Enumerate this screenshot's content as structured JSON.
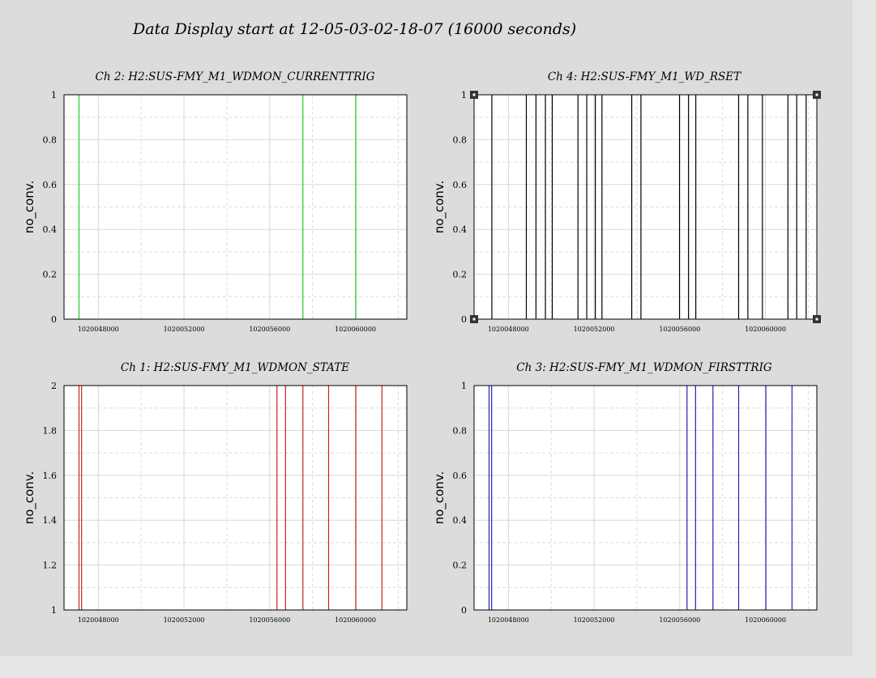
{
  "page": {
    "title": "Data Display start at 12-05-03-02-18-07 (16000 seconds)"
  },
  "chart_data": [
    {
      "type": "line",
      "title": "Ch 2: H2:SUS-FMY_M1_WDMON_CURRENTTRIG",
      "ylabel": "no_conv.",
      "xlim": [
        1020046400,
        1020062400
      ],
      "ylim": [
        0,
        1
      ],
      "yticks": [
        0,
        0.2,
        0.4,
        0.6,
        0.8,
        1
      ],
      "yticklabels": [
        "0",
        "0.2",
        "0.4",
        "0.6",
        "0.8",
        "1"
      ],
      "xticks": [
        1020048000,
        1020052000,
        1020056000,
        1020060000
      ],
      "xticklabels": [
        "1020048000",
        "1020052000",
        "1020056000",
        "1020060000"
      ],
      "grid": true,
      "color": "#22cc22",
      "series": [
        {
          "x": [
            1020047100,
            1020057550,
            1020060020
          ],
          "y": [
            1,
            1,
            1
          ]
        }
      ]
    },
    {
      "type": "line",
      "title": "Ch 4: H2:SUS-FMY_M1_WD_RSET",
      "ylabel": "no_conv.",
      "xlim": [
        1020046400,
        1020062400
      ],
      "ylim": [
        0,
        1
      ],
      "yticks": [
        0,
        0.2,
        0.4,
        0.6,
        0.8,
        1
      ],
      "yticklabels": [
        "0",
        "0.2",
        "0.4",
        "0.6",
        "0.8",
        "1"
      ],
      "xticks": [
        1020048000,
        1020052000,
        1020056000,
        1020060000
      ],
      "xticklabels": [
        "1020048000",
        "1020052000",
        "1020056000",
        "1020060000"
      ],
      "grid": true,
      "color": "#000000",
      "series": [
        {
          "x": [
            1020047230,
            1020048840,
            1020049290,
            1020049730,
            1020050050,
            1020051250,
            1020051660,
            1020052060,
            1020052370,
            1020053760,
            1020054190,
            1020055990,
            1020056410,
            1020056750,
            1020058750,
            1020059180,
            1020059860,
            1020061050,
            1020061460,
            1020061900
          ],
          "y": [
            1,
            1,
            1,
            1,
            1,
            1,
            1,
            1,
            1,
            1,
            1,
            1,
            1,
            1,
            1,
            1,
            1,
            1,
            1,
            1
          ]
        }
      ]
    },
    {
      "type": "line",
      "title": "Ch 1: H2:SUS-FMY_M1_WDMON_STATE",
      "ylabel": "no_conv.",
      "xlim": [
        1020046400,
        1020062400
      ],
      "ylim": [
        1,
        2
      ],
      "yticks": [
        1,
        1.2,
        1.4,
        1.6,
        1.8,
        2
      ],
      "yticklabels": [
        "1",
        "1.2",
        "1.4",
        "1.6",
        "1.8",
        "2"
      ],
      "xticks": [
        1020048000,
        1020052000,
        1020056000,
        1020060000
      ],
      "xticklabels": [
        "1020048000",
        "1020052000",
        "1020056000",
        "1020060000"
      ],
      "grid": true,
      "color": "#cc2222",
      "series": [
        {
          "x": [
            1020047100,
            1020047220,
            1020056340,
            1020056740,
            1020057550,
            1020058750,
            1020060020,
            1020061240
          ],
          "y": [
            2,
            2,
            2,
            2,
            2,
            2,
            2,
            2
          ]
        }
      ]
    },
    {
      "type": "line",
      "title": "Ch 3: H2:SUS-FMY_M1_WDMON_FIRSTTRIG",
      "ylabel": "no_conv.",
      "xlim": [
        1020046400,
        1020062400
      ],
      "ylim": [
        0,
        1
      ],
      "yticks": [
        0,
        0.2,
        0.4,
        0.6,
        0.8,
        1
      ],
      "yticklabels": [
        "0",
        "0.2",
        "0.4",
        "0.6",
        "0.8",
        "1"
      ],
      "xticks": [
        1020048000,
        1020052000,
        1020056000,
        1020060000
      ],
      "xticklabels": [
        "1020048000",
        "1020052000",
        "1020056000",
        "1020060000"
      ],
      "grid": true,
      "color": "#2222bb",
      "series": [
        {
          "x": [
            1020047100,
            1020047220,
            1020056340,
            1020056740,
            1020057550,
            1020058750,
            1020060020,
            1020061240
          ],
          "y": [
            1,
            1,
            1,
            1,
            1,
            1,
            1,
            1
          ]
        }
      ]
    }
  ]
}
